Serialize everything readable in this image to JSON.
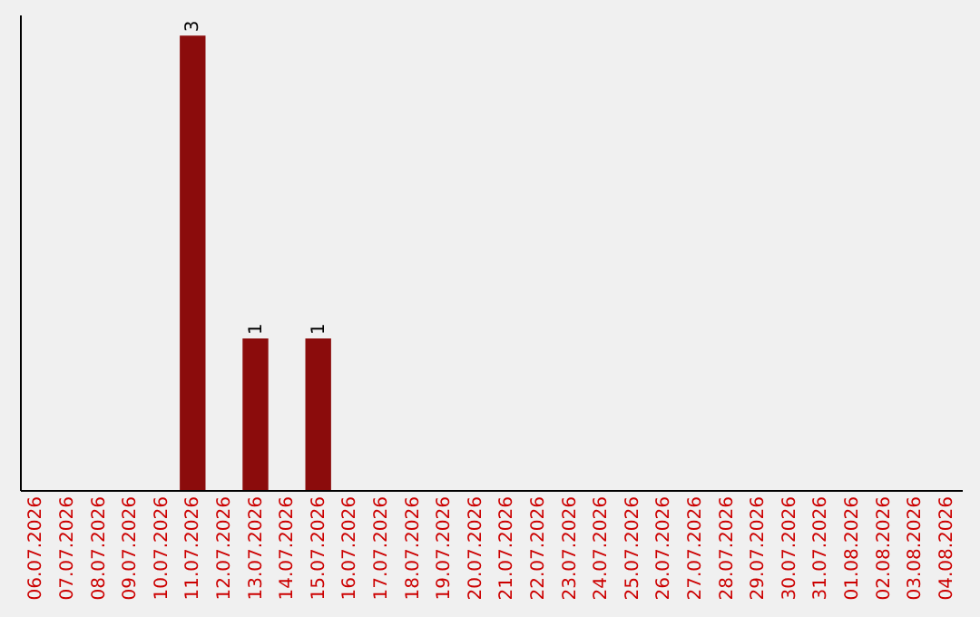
{
  "chart_data": {
    "type": "bar",
    "categories": [
      "06.07.2026",
      "07.07.2026",
      "08.07.2026",
      "09.07.2026",
      "10.07.2026",
      "11.07.2026",
      "12.07.2026",
      "13.07.2026",
      "14.07.2026",
      "15.07.2026",
      "16.07.2026",
      "17.07.2026",
      "18.07.2026",
      "19.07.2026",
      "20.07.2026",
      "21.07.2026",
      "22.07.2026",
      "23.07.2026",
      "24.07.2026",
      "25.07.2026",
      "26.07.2026",
      "27.07.2026",
      "28.07.2026",
      "29.07.2026",
      "30.07.2026",
      "31.07.2026",
      "01.08.2026",
      "02.08.2026",
      "03.08.2026",
      "04.08.2026"
    ],
    "values": [
      0,
      0,
      0,
      0,
      0,
      3,
      0,
      1,
      0,
      1,
      0,
      0,
      0,
      0,
      0,
      0,
      0,
      0,
      0,
      0,
      0,
      0,
      0,
      0,
      0,
      0,
      0,
      0,
      0,
      0
    ],
    "value_labels": [
      null,
      null,
      null,
      null,
      null,
      "3",
      null,
      "1",
      null,
      "1",
      null,
      null,
      null,
      null,
      null,
      null,
      null,
      null,
      null,
      null,
      null,
      null,
      null,
      null,
      null,
      null,
      null,
      null,
      null,
      null
    ],
    "color": "#8b0c0c",
    "ylim": [
      0,
      3.14
    ],
    "tick_labels": "x"
  }
}
